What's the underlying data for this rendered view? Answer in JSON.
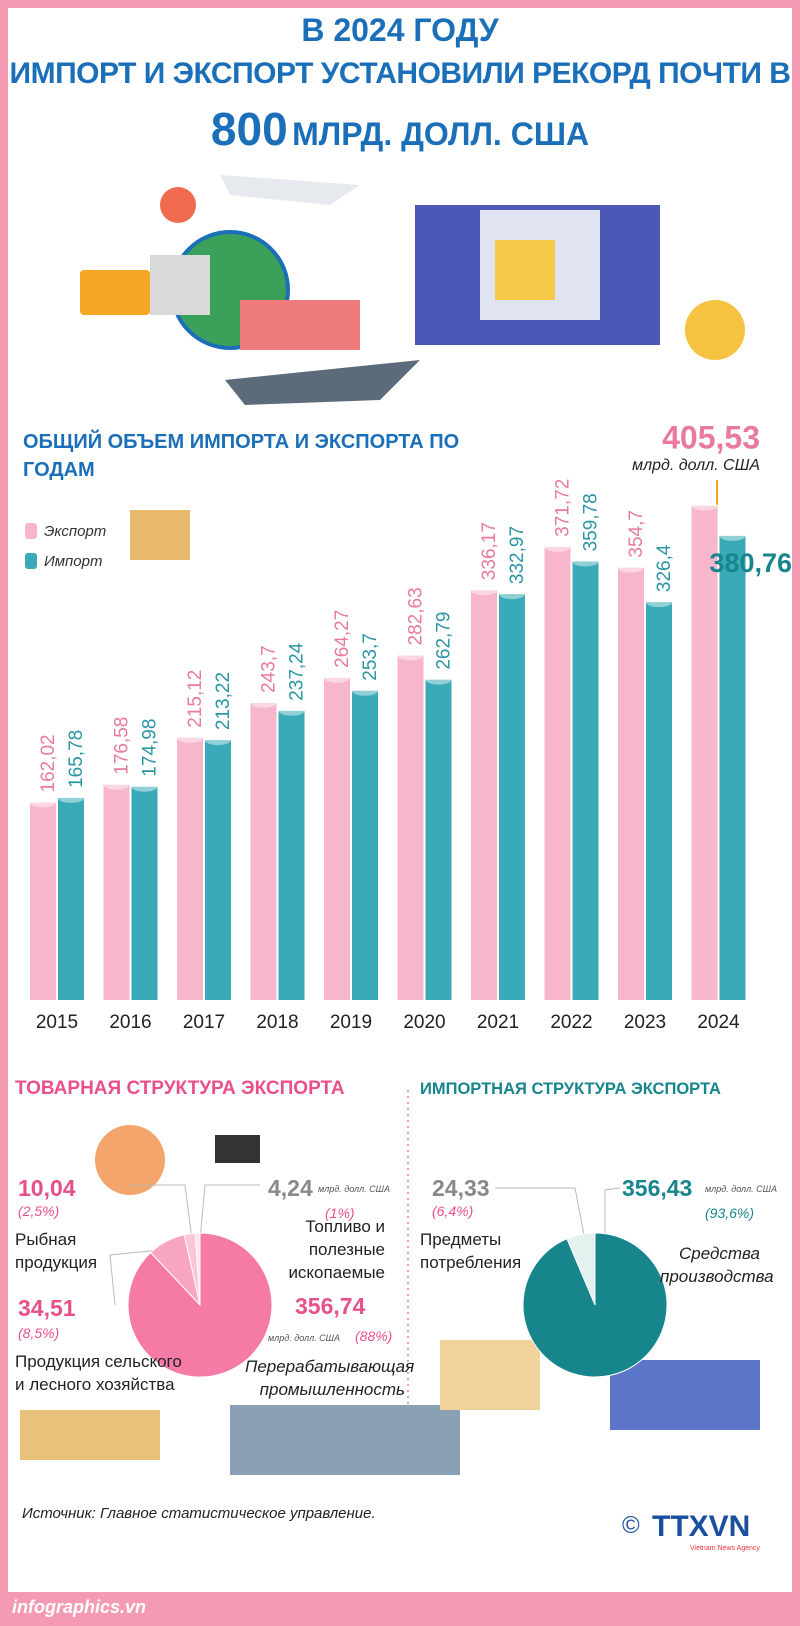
{
  "header": {
    "line1": "В 2024 ГОДУ",
    "line2": "ИМПОРТ И ЭКСПОРТ УСТАНОВИЛИ РЕКОРД ПОЧТИ В",
    "number": "800",
    "unit": "МЛРД. ДОЛЛ. США"
  },
  "chart_data": [
    {
      "type": "bar",
      "title": "ОБЩИЙ ОБЪЕМ ИМПОРТА И ЭКСПОРТА ПО ГОДАМ",
      "categories": [
        "2015",
        "2016",
        "2017",
        "2018",
        "2019",
        "2020",
        "2021",
        "2022",
        "2023",
        "2024"
      ],
      "series": [
        {
          "name": "Экспорт",
          "color": "#f7b6cc",
          "values": [
            162.02,
            176.58,
            215.12,
            243.7,
            264.27,
            282.63,
            336.17,
            371.72,
            354.7,
            405.53
          ],
          "value_labels": [
            "162,02",
            "176,58",
            "215,12",
            "243,7",
            "264,27",
            "282,63",
            "336,17",
            "371,72",
            "354,7",
            "405,53"
          ]
        },
        {
          "name": "Импорт",
          "color": "#3aaab9",
          "values": [
            165.78,
            174.98,
            213.22,
            237.24,
            253.7,
            262.79,
            332.97,
            359.78,
            326.4,
            380.76
          ],
          "value_labels": [
            "165,78",
            "174,98",
            "213,22",
            "237,24",
            "253,7",
            "262,79",
            "332,97",
            "359,78",
            "326,4",
            "380,76"
          ]
        }
      ],
      "unit_label": "млрд. долл. США",
      "ylim": [
        0,
        420
      ]
    },
    {
      "type": "pie",
      "title": "ТОВАРНАЯ СТРУКТУРА ЭКСПОРТА",
      "unit_label": "млрд. долл. США",
      "labels": [
        "Рыбная продукция",
        "Топливо и полезные ископаемые",
        "Продукция сельского и лесного хозяйства",
        "Перерабатывающая промышленность"
      ],
      "values": [
        10.04,
        4.24,
        34.51,
        356.74
      ],
      "value_labels": [
        "10,04",
        "4,24",
        "34,51",
        "356,74"
      ],
      "share_labels": [
        "(2,5%)",
        "(1%)",
        "(8,5%)",
        "(88%)"
      ],
      "colors": [
        "#f9c6d6",
        "#fde3ec",
        "#f8a5c2",
        "#f57aa5"
      ]
    },
    {
      "type": "pie",
      "title": "ИМПОРТНАЯ СТРУКТУРА ЭКСПОРТА",
      "unit_label": "млрд. долл. США",
      "labels": [
        "Предметы потребления",
        "Средства производства"
      ],
      "values": [
        24.33,
        356.43
      ],
      "value_labels": [
        "24,33",
        "356,43"
      ],
      "share_labels": [
        "(6,4%)",
        "(93,6%)"
      ],
      "colors": [
        "#e3f1ef",
        "#17858c"
      ]
    }
  ],
  "source": "Источник: Главное статистическое управление.",
  "footer": "infographics.vn",
  "logo": {
    "copyright": "©",
    "name": "TTXVN",
    "sub": "Vietnam News Agency"
  }
}
